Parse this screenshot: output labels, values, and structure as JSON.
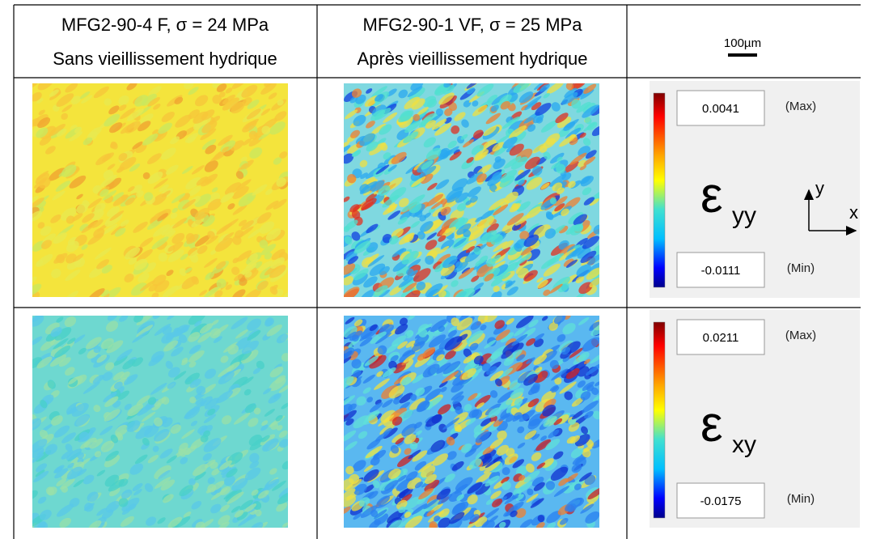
{
  "table": {
    "header": [
      {
        "lines": [
          "MFG2-90-4 F, σ = 24 MPa",
          "Sans vieillissement hydrique"
        ]
      },
      {
        "lines": [
          "MFG2-90-1 VF, σ = 25 MPa",
          "Après vieillissement hydrique"
        ]
      },
      {
        "scale_bar": "100µm"
      }
    ],
    "rows": [
      {
        "legend": {
          "max": "0.0041",
          "max_label": "(Max)",
          "min": "-0.0111",
          "min_label": "(Min)",
          "symbol": "ε",
          "subscript": "yy",
          "axes": {
            "y": "y",
            "x": "x"
          }
        }
      },
      {
        "legend": {
          "max": "0.0211",
          "max_label": "(Max)",
          "min": "-0.0175",
          "min_label": "(Min)",
          "symbol": "ε",
          "subscript": "xy"
        }
      }
    ]
  }
}
